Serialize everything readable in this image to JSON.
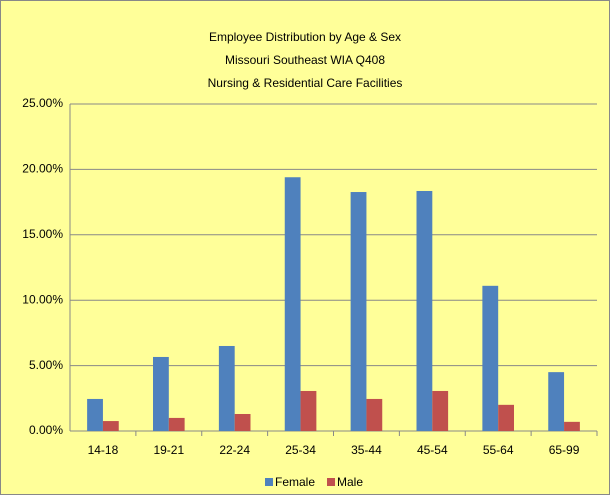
{
  "chart_data": {
    "type": "bar",
    "title": [
      "Employee Distribution by Age & Sex",
      "Missouri Southeast WIA Q408",
      "Nursing & Residential Care Facilities"
    ],
    "categories": [
      "14-18",
      "19-21",
      "22-24",
      "25-34",
      "35-44",
      "45-54",
      "55-64",
      "65-99"
    ],
    "series": [
      {
        "name": "Female",
        "color": "#4f81bd",
        "values": [
          2.45,
          5.66,
          6.5,
          19.4,
          18.27,
          18.35,
          11.1,
          4.5
        ]
      },
      {
        "name": "Male",
        "color": "#c0504d",
        "values": [
          0.76,
          1.0,
          1.3,
          3.06,
          2.45,
          3.06,
          2.0,
          0.7
        ]
      }
    ],
    "ylim": [
      0,
      25
    ],
    "yticks": [
      {
        "value": 0,
        "label": "0.00%"
      },
      {
        "value": 5,
        "label": "5.00%"
      },
      {
        "value": 10,
        "label": "10.00%"
      },
      {
        "value": 15,
        "label": "15.00%"
      },
      {
        "value": 20,
        "label": "20.00%"
      },
      {
        "value": 25,
        "label": "25.00%"
      }
    ],
    "grid": true,
    "legend": "bottom"
  }
}
